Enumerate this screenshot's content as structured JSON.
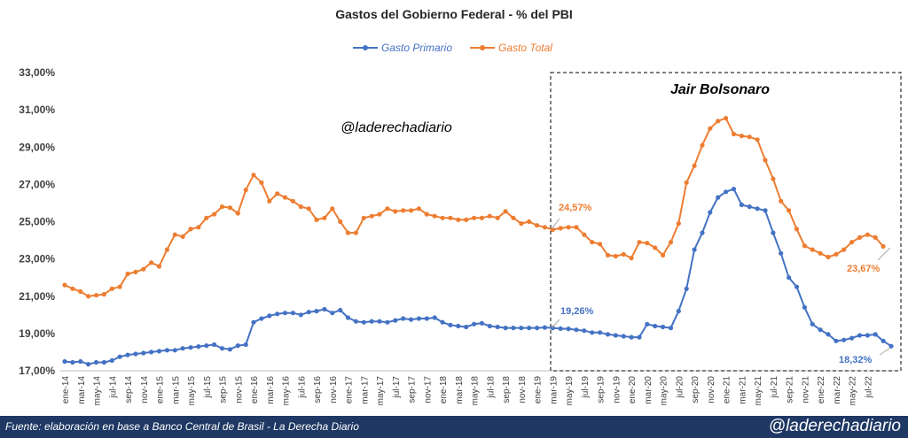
{
  "chart_data": {
    "type": "line",
    "title": "Gastos del Gobierno Federal - % del PBI",
    "ylim": [
      17,
      33
    ],
    "yticks": [
      "17,00%",
      "19,00%",
      "21,00%",
      "23,00%",
      "25,00%",
      "27,00%",
      "29,00%",
      "31,00%",
      "33,00%"
    ],
    "xticks": [
      "ene-14",
      "mar-14",
      "may-14",
      "jul-14",
      "sep-14",
      "nov-14",
      "ene-15",
      "mar-15",
      "may-15",
      "jul-15",
      "sep-15",
      "nov-15",
      "ene-16",
      "mar-16",
      "may-16",
      "jul-16",
      "sep-16",
      "nov-16",
      "ene-17",
      "mar-17",
      "may-17",
      "jul-17",
      "sep-17",
      "nov-17",
      "ene-18",
      "mar-18",
      "may-18",
      "jul-18",
      "sep-18",
      "nov-18",
      "ene-19",
      "mar-19",
      "may-19",
      "jul-19",
      "sep-19",
      "nov-19",
      "ene-20",
      "mar-20",
      "may-20",
      "jul-20",
      "sep-20",
      "nov-20",
      "ene-21",
      "mar-21",
      "may-21",
      "jul-21",
      "sep-21",
      "nov-21",
      "ene-22",
      "mar-22",
      "may-22",
      "jul-22"
    ],
    "x_start": "ene-14",
    "x_end": "jul-22",
    "legend_position": "top",
    "grid": false,
    "series": [
      {
        "name": "Gasto Primario",
        "color": "#4472c4",
        "values": [
          17.5,
          17.45,
          17.5,
          17.35,
          17.45,
          17.45,
          17.55,
          17.75,
          17.85,
          17.9,
          17.95,
          18.0,
          18.05,
          18.1,
          18.1,
          18.2,
          18.25,
          18.3,
          18.35,
          18.4,
          18.2,
          18.15,
          18.35,
          18.4,
          19.6,
          19.8,
          19.95,
          20.05,
          20.1,
          20.1,
          20.0,
          20.15,
          20.2,
          20.3,
          20.1,
          20.25,
          19.85,
          19.65,
          19.6,
          19.65,
          19.65,
          19.6,
          19.7,
          19.8,
          19.75,
          19.8,
          19.8,
          19.85,
          19.6,
          19.45,
          19.4,
          19.35,
          19.5,
          19.55,
          19.4,
          19.35,
          19.3,
          19.3,
          19.3,
          19.3,
          19.3,
          19.32,
          19.3,
          19.26,
          19.25,
          19.2,
          19.15,
          19.05,
          19.05,
          18.95,
          18.9,
          18.85,
          18.8,
          18.8,
          19.5,
          19.4,
          19.35,
          19.3,
          20.2,
          21.4,
          23.5,
          24.4,
          25.5,
          26.3,
          26.6,
          26.75,
          25.9,
          25.8,
          25.7,
          25.6,
          24.4,
          23.3,
          22.0,
          21.5,
          20.4,
          19.5,
          19.2,
          18.95,
          18.6,
          18.65,
          18.75,
          18.9,
          18.9,
          18.95,
          18.6,
          18.32
        ]
      },
      {
        "name": "Gasto Total",
        "color": "#ed7d31",
        "values": [
          21.6,
          21.4,
          21.25,
          21.0,
          21.05,
          21.1,
          21.4,
          21.5,
          22.2,
          22.3,
          22.45,
          22.8,
          22.6,
          23.5,
          24.3,
          24.2,
          24.6,
          24.7,
          25.2,
          25.4,
          25.8,
          25.75,
          25.45,
          26.7,
          27.5,
          27.1,
          26.1,
          26.5,
          26.3,
          26.1,
          25.8,
          25.7,
          25.1,
          25.2,
          25.7,
          25.0,
          24.4,
          24.4,
          25.2,
          25.3,
          25.4,
          25.7,
          25.55,
          25.6,
          25.6,
          25.7,
          25.4,
          25.3,
          25.2,
          25.2,
          25.1,
          25.1,
          25.2,
          25.2,
          25.3,
          25.2,
          25.55,
          25.2,
          24.9,
          25.0,
          24.8,
          24.7,
          24.57,
          24.65,
          24.7,
          24.7,
          24.3,
          23.9,
          23.8,
          23.2,
          23.15,
          23.25,
          23.05,
          23.9,
          23.85,
          23.6,
          23.2,
          23.9,
          24.9,
          27.1,
          28.0,
          29.1,
          30.0,
          30.4,
          30.55,
          29.7,
          29.6,
          29.55,
          29.4,
          28.3,
          27.3,
          26.1,
          25.6,
          24.6,
          23.7,
          23.5,
          23.3,
          23.1,
          23.25,
          23.5,
          23.9,
          24.15,
          24.3,
          24.15,
          23.67
        ]
      }
    ],
    "annotations": {
      "period_label": "Jair Bolsonaro",
      "watermark": "@laderechadiario",
      "total_start_label": "24,57%",
      "primary_start_label": "19,26%",
      "total_end_label": "23,67%",
      "primary_end_label": "18,32%"
    }
  },
  "footer": {
    "source": "Fuente: elaboración en base a Banco Central de Brasil - La Derecha Diario",
    "handle": "@laderechadiario"
  }
}
